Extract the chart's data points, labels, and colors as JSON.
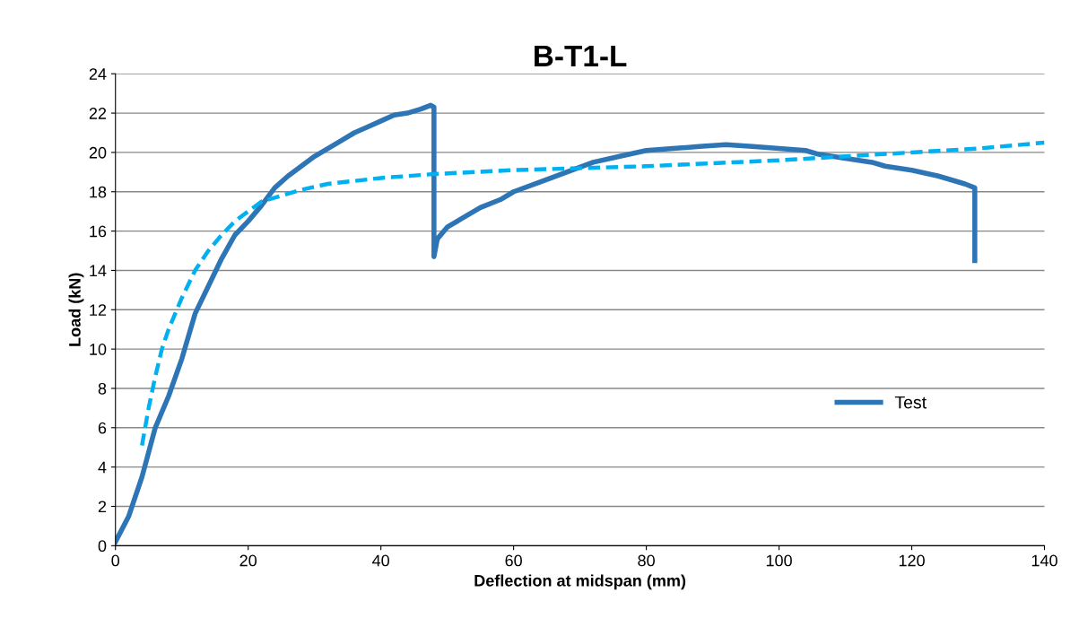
{
  "chart_data": {
    "type": "line",
    "title": "B-T1-L",
    "xlabel": "Deflection at midspan (mm)",
    "ylabel": "Load (kN)",
    "xlim": [
      0,
      140
    ],
    "xticks": [
      0,
      20,
      40,
      60,
      80,
      100,
      120,
      140
    ],
    "ylim": [
      0,
      24
    ],
    "yticks": [
      0,
      2,
      4,
      6,
      8,
      10,
      12,
      14,
      16,
      18,
      20,
      22,
      24
    ],
    "grid": "y",
    "legend": "lower right",
    "series": [
      {
        "name": "Test",
        "color": "#2e75b6",
        "line_style": "solid",
        "x": [
          0,
          2,
          4,
          6,
          8,
          10,
          12,
          14,
          16,
          18,
          20,
          22,
          24,
          26,
          28,
          30,
          32,
          34,
          36,
          38,
          40,
          42,
          44,
          46,
          47.5,
          48,
          48,
          48.5,
          50,
          52,
          55,
          58,
          60,
          64,
          68,
          72,
          76,
          80,
          84,
          88,
          92,
          96,
          100,
          104,
          106,
          110,
          114,
          116,
          120,
          124,
          128,
          129.5,
          129.5
        ],
        "values": [
          0.2,
          1.5,
          3.5,
          6,
          7.6,
          9.5,
          11.8,
          13.2,
          14.6,
          15.8,
          16.5,
          17.3,
          18.2,
          18.8,
          19.3,
          19.8,
          20.2,
          20.6,
          21,
          21.3,
          21.6,
          21.9,
          22,
          22.2,
          22.4,
          22.3,
          14.7,
          15.6,
          16.2,
          16.6,
          17.2,
          17.6,
          18,
          18.5,
          19,
          19.5,
          19.8,
          20.1,
          20.2,
          20.3,
          20.4,
          20.3,
          20.2,
          20.1,
          19.9,
          19.7,
          19.5,
          19.3,
          19.1,
          18.8,
          18.4,
          18.2,
          14.5
        ]
      },
      {
        "color": "#00b0f0",
        "line_style": "dashed",
        "x": [
          4,
          5,
          6,
          7,
          8,
          10,
          12,
          14,
          16,
          18,
          20,
          22,
          25,
          28,
          32,
          40,
          48,
          60,
          80,
          100,
          110,
          120,
          130,
          140
        ],
        "values": [
          5.1,
          7,
          8.6,
          10,
          11,
          12.6,
          14,
          15,
          15.8,
          16.5,
          17,
          17.5,
          17.8,
          18.1,
          18.4,
          18.7,
          18.9,
          19.1,
          19.3,
          19.6,
          19.8,
          20,
          20.2,
          20.5
        ]
      }
    ]
  }
}
